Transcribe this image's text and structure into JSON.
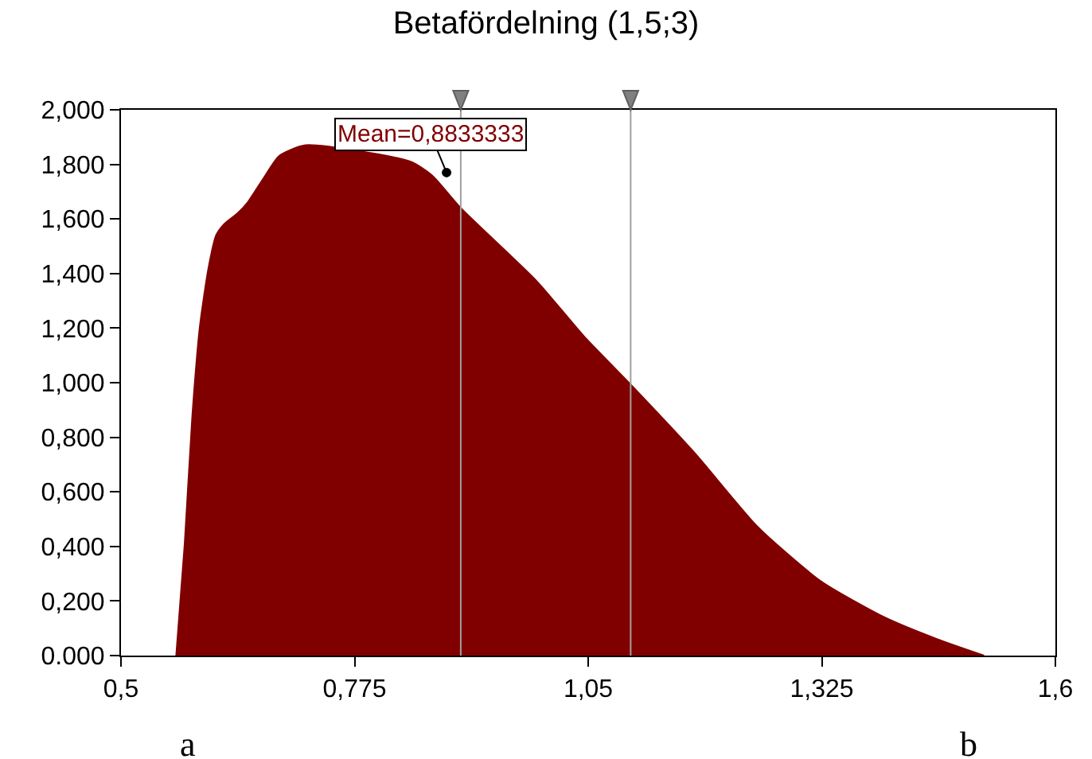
{
  "chart_data": {
    "type": "area",
    "title": "Betafördelning (1,5;3)",
    "x": [
      0.565,
      0.575,
      0.584,
      0.593,
      0.603,
      0.612,
      0.621,
      0.637,
      0.649,
      0.668,
      0.686,
      0.717,
      0.841,
      0.866,
      0.9,
      0.99,
      1.045,
      1.101,
      1.176,
      1.25,
      1.325,
      1.399,
      1.461,
      1.516
    ],
    "series": [
      {
        "color": "#800000",
        "values": [
          0,
          0.41,
          0.88,
          1.21,
          1.42,
          1.54,
          1.58,
          1.62,
          1.66,
          1.75,
          1.83,
          1.87,
          1.81,
          1.76,
          1.64,
          1.37,
          1.17,
          0.99,
          0.74,
          0.47,
          0.27,
          0.14,
          0.06,
          0
        ]
      }
    ],
    "xlim": [
      0.5,
      1.6
    ],
    "xticks": [
      {
        "value": 0.5,
        "label": "0,5"
      },
      {
        "value": 0.775,
        "label": "0,775"
      },
      {
        "value": 1.05,
        "label": "1,05"
      },
      {
        "value": 1.325,
        "label": "1,325"
      },
      {
        "value": 1.6,
        "label": "1,6"
      }
    ],
    "ylim": [
      0,
      2
    ],
    "yticks": [
      {
        "value": 0,
        "label": "0.000"
      },
      {
        "value": 0.2,
        "label": "0,200"
      },
      {
        "value": 0.4,
        "label": "0,400"
      },
      {
        "value": 0.6,
        "label": "0,600"
      },
      {
        "value": 0.8,
        "label": "0,800"
      },
      {
        "value": 1.0,
        "label": "1,000"
      },
      {
        "value": 1.2,
        "label": "1,200"
      },
      {
        "value": 1.4,
        "label": "1,400"
      },
      {
        "value": 1.6,
        "label": "1,600"
      },
      {
        "value": 1.8,
        "label": "1,800"
      },
      {
        "value": 2.0,
        "label": "2,000"
      }
    ],
    "ref_lines": [
      {
        "axis": "x",
        "value": 0.9,
        "color": "#a0a0a0"
      },
      {
        "axis": "x",
        "value": 1.1,
        "color": "#a0a0a0"
      }
    ],
    "annotations": [
      {
        "text": "Mean=0,8833333",
        "x": 0.8833,
        "y": 1.77
      },
      "a",
      "b"
    ]
  }
}
